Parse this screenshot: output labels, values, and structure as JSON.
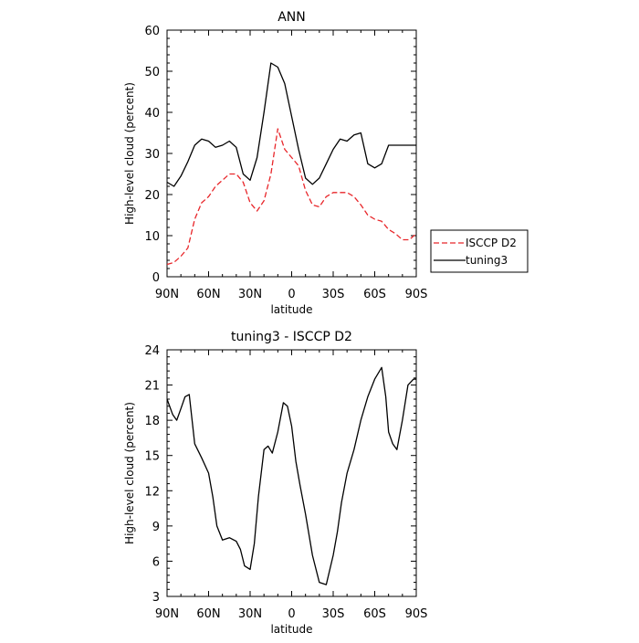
{
  "chart_data": [
    {
      "type": "line",
      "title": "ANN",
      "xlabel": "latitude",
      "ylabel": "High-level cloud (percent)",
      "xlim": [
        90,
        -90
      ],
      "ylim": [
        0,
        60
      ],
      "xticks": [
        90,
        60,
        30,
        0,
        -30,
        -60,
        -90
      ],
      "xtick_labels": [
        "90N",
        "60N",
        "30N",
        "0",
        "30S",
        "60S",
        "90S"
      ],
      "yticks": [
        0,
        10,
        20,
        30,
        40,
        50,
        60
      ],
      "ytick_labels": [
        "0",
        "10",
        "20",
        "30",
        "40",
        "50",
        "60"
      ],
      "legend": {
        "placement": "outside-right"
      },
      "series": [
        {
          "name": "ISCCP D2",
          "color": "#e8262a",
          "dash": "dashed",
          "x": [
            90,
            85,
            80,
            75,
            70,
            65,
            60,
            55,
            50,
            45,
            40,
            35,
            30,
            25,
            20,
            15,
            10,
            5,
            0,
            -5,
            -10,
            -15,
            -20,
            -25,
            -30,
            -35,
            -40,
            -45,
            -50,
            -55,
            -60,
            -65,
            -70,
            -75,
            -80,
            -85,
            -90
          ],
          "y": [
            3,
            3.5,
            5,
            7,
            14,
            18,
            19.5,
            22,
            23.5,
            25,
            25,
            23,
            18,
            16,
            18.5,
            25,
            36,
            31,
            29,
            27,
            21,
            17.5,
            17,
            19.5,
            20.5,
            20.5,
            20.5,
            19.5,
            17.5,
            15,
            14,
            13.5,
            11.5,
            10.5,
            9,
            9,
            10.5
          ]
        },
        {
          "name": "tuning3",
          "color": "#000000",
          "dash": "solid",
          "x": [
            90,
            85,
            80,
            75,
            70,
            65,
            60,
            55,
            50,
            45,
            40,
            35,
            30,
            25,
            20,
            15,
            10,
            5,
            0,
            -5,
            -10,
            -15,
            -20,
            -25,
            -30,
            -35,
            -40,
            -45,
            -50,
            -55,
            -60,
            -65,
            -70,
            -75,
            -80,
            -85,
            -90
          ],
          "y": [
            23,
            22,
            24.5,
            28,
            32,
            33.5,
            33,
            31.5,
            32,
            33,
            31.5,
            25,
            23.5,
            29,
            40,
            52,
            51,
            47,
            39,
            31,
            24,
            22.5,
            24,
            27.5,
            31,
            33.5,
            33,
            34.5,
            35,
            27.5,
            26.5,
            27.5,
            32,
            32,
            32,
            32,
            32
          ]
        }
      ]
    },
    {
      "type": "line",
      "title": "tuning3 - ISCCP D2",
      "xlabel": "latitude",
      "ylabel": "High-level cloud (percent)",
      "xlim": [
        90,
        -90
      ],
      "ylim": [
        3,
        24
      ],
      "xticks": [
        90,
        60,
        30,
        0,
        -30,
        -60,
        -90
      ],
      "xtick_labels": [
        "90N",
        "60N",
        "30N",
        "0",
        "30S",
        "60S",
        "90S"
      ],
      "yticks": [
        3,
        6,
        9,
        12,
        15,
        18,
        21,
        24
      ],
      "ytick_labels": [
        "3",
        "6",
        "9",
        "12",
        "15",
        "18",
        "21",
        "24"
      ],
      "series": [
        {
          "color": "#000000",
          "dash": "solid",
          "x": [
            90,
            86,
            83,
            80,
            77,
            74,
            70,
            65,
            60,
            57,
            54,
            50,
            45,
            40,
            37,
            34,
            30,
            27,
            24,
            20,
            17,
            14,
            10,
            6,
            3,
            0,
            -3,
            -6,
            -10,
            -15,
            -20,
            -25,
            -30,
            -33,
            -36,
            -40,
            -45,
            -50,
            -55,
            -60,
            -65,
            -68,
            -70,
            -73,
            -76,
            -80,
            -84,
            -88,
            -90
          ],
          "y": [
            19.8,
            18.5,
            18,
            19,
            20,
            20.2,
            16,
            14.8,
            13.5,
            11.5,
            9,
            7.8,
            8,
            7.7,
            7,
            5.6,
            5.3,
            7.5,
            11.5,
            15.5,
            15.8,
            15.2,
            17,
            19.5,
            19.2,
            17.5,
            14.5,
            12.5,
            10,
            6.5,
            4.2,
            4,
            6.5,
            8.5,
            11,
            13.5,
            15.5,
            18,
            20,
            21.5,
            22.5,
            20,
            17,
            16,
            15.5,
            18,
            21,
            21.5,
            21.5
          ]
        }
      ]
    }
  ]
}
